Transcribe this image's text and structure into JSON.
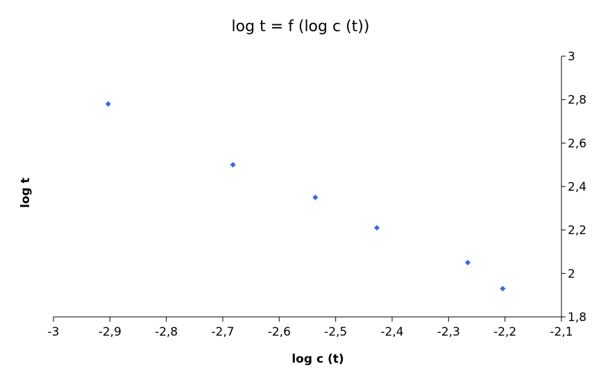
{
  "chart_data": {
    "type": "scatter",
    "title": "log t = f (log c (t))",
    "xlabel": "log c (t)",
    "ylabel": "log t",
    "xlim": [
      -3,
      -2.1
    ],
    "ylim": [
      1.8,
      3
    ],
    "x_ticks": [
      -3,
      -2.9,
      -2.8,
      -2.7,
      -2.6,
      -2.5,
      -2.4,
      -2.3,
      -2.2,
      -2.1
    ],
    "x_tick_labels": [
      "-3",
      "-2,9",
      "-2,8",
      "-2,7",
      "-2,6",
      "-2,5",
      "-2,4",
      "-2,3",
      "-2,2",
      "-2,1"
    ],
    "y_ticks": [
      1.8,
      2,
      2.2,
      2.4,
      2.6,
      2.8,
      3
    ],
    "y_tick_labels": [
      "1,8",
      "2",
      "2,2",
      "2,4",
      "2,6",
      "2,8",
      "3"
    ],
    "y_axis_position": "right",
    "grid": false,
    "legend": "none",
    "marker": "diamond",
    "marker_color": "#3366ff",
    "points": [
      {
        "x": -2.903,
        "y": 2.78
      },
      {
        "x": -2.682,
        "y": 2.5
      },
      {
        "x": -2.536,
        "y": 2.35
      },
      {
        "x": -2.427,
        "y": 2.21
      },
      {
        "x": -2.266,
        "y": 2.05
      },
      {
        "x": -2.204,
        "y": 1.93
      }
    ]
  }
}
